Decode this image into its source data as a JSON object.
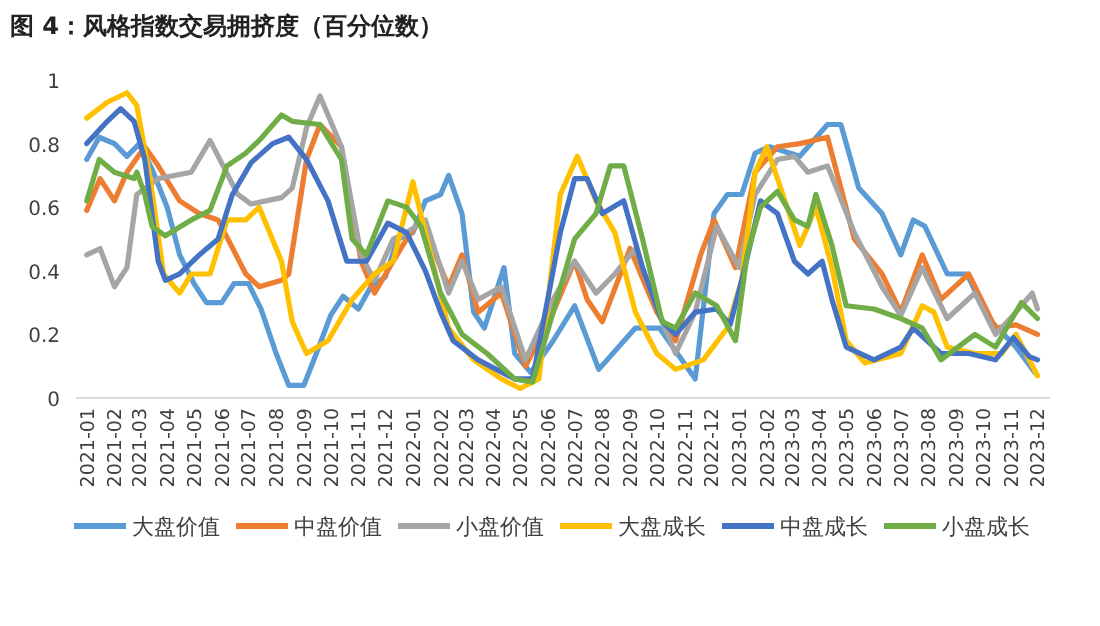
{
  "chart_data": {
    "type": "line",
    "title": "图 4：风格指数交易拥挤度（百分位数）",
    "xlim": [
      "2020-12-20",
      "2023-12-15"
    ],
    "xticks": [
      "2021-01",
      "2021-02",
      "2021-03",
      "2021-04",
      "2021-05",
      "2021-06",
      "2021-07",
      "2021-08",
      "2021-09",
      "2021-10",
      "2021-11",
      "2021-12",
      "2022-01",
      "2022-02",
      "2022-03",
      "2022-04",
      "2022-05",
      "2022-06",
      "2022-07",
      "2022-08",
      "2022-09",
      "2022-10",
      "2022-11",
      "2022-12",
      "2023-01",
      "2023-02",
      "2023-03",
      "2023-04",
      "2023-05",
      "2023-06",
      "2023-07",
      "2023-08",
      "2023-09",
      "2023-10",
      "2023-11",
      "2023-12"
    ],
    "ylim": [
      0,
      1
    ],
    "yticks": [
      0,
      0.2,
      0.4,
      0.6,
      0.8,
      1
    ],
    "grid": false,
    "legend": "bottom",
    "marker": "none",
    "line_style": "solid",
    "series": [
      {
        "name": "大盘价值",
        "color": "#5b9bd5",
        "x": [
          "2021-01-01",
          "2021-01-15",
          "2021-02-01",
          "2021-02-15",
          "2021-03-01",
          "2021-03-15",
          "2021-04-01",
          "2021-04-15",
          "2021-05-01",
          "2021-05-15",
          "2021-06-01",
          "2021-06-15",
          "2021-07-01",
          "2021-07-15",
          "2021-08-01",
          "2021-08-15",
          "2021-09-01",
          "2021-09-15",
          "2021-10-01",
          "2021-10-15",
          "2021-11-01",
          "2021-11-15",
          "2021-12-01",
          "2021-12-15",
          "2022-01-01",
          "2022-01-15",
          "2022-02-01",
          "2022-02-10",
          "2022-02-25",
          "2022-03-10",
          "2022-03-22",
          "2022-04-13",
          "2022-04-25",
          "2022-05-13",
          "2022-06-07",
          "2022-07-01",
          "2022-07-28",
          "2022-09-07",
          "2022-10-04",
          "2022-11-13",
          "2022-12-04",
          "2022-12-19",
          "2023-01-04",
          "2023-01-19",
          "2023-02-04",
          "2023-03-10",
          "2023-04-10",
          "2023-04-25",
          "2023-05-15",
          "2023-06-10",
          "2023-07-01",
          "2023-07-15",
          "2023-07-28",
          "2023-08-22",
          "2023-09-13",
          "2023-10-07",
          "2023-11-07",
          "2023-11-28"
        ],
        "values": [
          0.75,
          0.82,
          0.8,
          0.76,
          0.8,
          0.72,
          0.6,
          0.45,
          0.36,
          0.3,
          0.3,
          0.36,
          0.36,
          0.28,
          0.14,
          0.04,
          0.04,
          0.14,
          0.26,
          0.32,
          0.28,
          0.35,
          0.38,
          0.5,
          0.52,
          0.62,
          0.64,
          0.7,
          0.58,
          0.27,
          0.22,
          0.41,
          0.14,
          0.08,
          0.18,
          0.29,
          0.09,
          0.22,
          0.22,
          0.06,
          0.58,
          0.64,
          0.64,
          0.77,
          0.79,
          0.76,
          0.86,
          0.86,
          0.66,
          0.58,
          0.45,
          0.56,
          0.54,
          0.39,
          0.39,
          0.25,
          0.16,
          0.08
        ]
      },
      {
        "name": "中盘价值",
        "color": "#ed7d31",
        "x": [
          "2021-01-01",
          "2021-01-16",
          "2021-02-01",
          "2021-02-15",
          "2021-03-07",
          "2021-03-22",
          "2021-04-15",
          "2021-05-07",
          "2021-05-28",
          "2021-06-28",
          "2021-07-13",
          "2021-08-07",
          "2021-08-15",
          "2021-09-04",
          "2021-09-19",
          "2021-10-13",
          "2021-11-04",
          "2021-11-19",
          "2021-12-10",
          "2021-12-25",
          "2022-01-10",
          "2022-02-10",
          "2022-02-25",
          "2022-03-15",
          "2022-04-10",
          "2022-05-07",
          "2022-06-07",
          "2022-07-01",
          "2022-07-15",
          "2022-08-01",
          "2022-09-01",
          "2022-10-01",
          "2022-10-22",
          "2022-11-19",
          "2022-12-04",
          "2022-12-28",
          "2023-01-19",
          "2023-02-13",
          "2023-03-10",
          "2023-04-10",
          "2023-05-10",
          "2023-06-10",
          "2023-07-01",
          "2023-07-25",
          "2023-08-15",
          "2023-09-15",
          "2023-10-15",
          "2023-11-07",
          "2023-12-01"
        ],
        "values": [
          0.59,
          0.69,
          0.62,
          0.71,
          0.79,
          0.73,
          0.62,
          0.58,
          0.56,
          0.39,
          0.35,
          0.37,
          0.39,
          0.75,
          0.86,
          0.79,
          0.43,
          0.33,
          0.43,
          0.5,
          0.56,
          0.35,
          0.45,
          0.27,
          0.33,
          0.1,
          0.27,
          0.43,
          0.31,
          0.24,
          0.47,
          0.27,
          0.18,
          0.45,
          0.56,
          0.41,
          0.71,
          0.79,
          0.8,
          0.82,
          0.5,
          0.39,
          0.27,
          0.45,
          0.31,
          0.39,
          0.22,
          0.23,
          0.2
        ]
      },
      {
        "name": "小盘价值",
        "color": "#a5a5a5",
        "x": [
          "2021-01-01",
          "2021-01-16",
          "2021-02-01",
          "2021-02-15",
          "2021-02-26",
          "2021-03-22",
          "2021-04-28",
          "2021-05-19",
          "2021-06-19",
          "2021-07-04",
          "2021-08-07",
          "2021-08-19",
          "2021-09-04",
          "2021-09-19",
          "2021-10-13",
          "2021-11-04",
          "2021-11-19",
          "2021-12-10",
          "2021-12-25",
          "2022-01-15",
          "2022-02-10",
          "2022-02-25",
          "2022-03-15",
          "2022-04-10",
          "2022-05-07",
          "2022-06-07",
          "2022-07-01",
          "2022-07-25",
          "2022-08-15",
          "2022-09-07",
          "2022-10-07",
          "2022-10-22",
          "2022-11-13",
          "2022-12-07",
          "2023-01-01",
          "2023-01-19",
          "2023-02-13",
          "2023-03-04",
          "2023-03-19",
          "2023-04-10",
          "2023-05-10",
          "2023-06-10",
          "2023-07-01",
          "2023-07-25",
          "2023-08-22",
          "2023-09-22",
          "2023-10-15",
          "2023-11-07",
          "2023-11-25",
          "2023-12-01"
        ],
        "values": [
          0.45,
          0.47,
          0.35,
          0.41,
          0.64,
          0.69,
          0.71,
          0.81,
          0.64,
          0.61,
          0.63,
          0.66,
          0.85,
          0.95,
          0.79,
          0.45,
          0.37,
          0.5,
          0.52,
          0.56,
          0.33,
          0.43,
          0.31,
          0.35,
          0.12,
          0.31,
          0.43,
          0.33,
          0.39,
          0.47,
          0.24,
          0.14,
          0.27,
          0.54,
          0.41,
          0.64,
          0.75,
          0.76,
          0.71,
          0.73,
          0.52,
          0.35,
          0.26,
          0.41,
          0.25,
          0.33,
          0.2,
          0.27,
          0.33,
          0.28
        ]
      },
      {
        "name": "大盘成长",
        "color": "#ffc000",
        "x": [
          "2021-01-01",
          "2021-01-24",
          "2021-02-15",
          "2021-02-26",
          "2021-03-13",
          "2021-03-28",
          "2021-04-15",
          "2021-04-28",
          "2021-05-19",
          "2021-06-07",
          "2021-06-28",
          "2021-07-13",
          "2021-08-07",
          "2021-08-19",
          "2021-09-04",
          "2021-09-28",
          "2021-10-25",
          "2021-11-19",
          "2021-12-10",
          "2022-01-01",
          "2022-01-15",
          "2022-02-10",
          "2022-03-10",
          "2022-04-10",
          "2022-05-01",
          "2022-05-22",
          "2022-06-15",
          "2022-07-04",
          "2022-07-25",
          "2022-08-15",
          "2022-09-07",
          "2022-10-01",
          "2022-10-22",
          "2022-11-22",
          "2022-12-19",
          "2023-01-04",
          "2023-01-19",
          "2023-02-01",
          "2023-02-19",
          "2023-03-10",
          "2023-03-28",
          "2023-04-15",
          "2023-05-01",
          "2023-05-22",
          "2023-07-01",
          "2023-07-25",
          "2023-08-07",
          "2023-08-22",
          "2023-09-22",
          "2023-10-22",
          "2023-11-07",
          "2023-12-01"
        ],
        "values": [
          0.88,
          0.93,
          0.96,
          0.92,
          0.69,
          0.39,
          0.33,
          0.39,
          0.39,
          0.56,
          0.56,
          0.6,
          0.43,
          0.24,
          0.14,
          0.18,
          0.31,
          0.39,
          0.43,
          0.68,
          0.52,
          0.22,
          0.12,
          0.06,
          0.03,
          0.06,
          0.64,
          0.76,
          0.62,
          0.52,
          0.27,
          0.14,
          0.09,
          0.12,
          0.22,
          0.37,
          0.71,
          0.79,
          0.64,
          0.48,
          0.6,
          0.41,
          0.18,
          0.11,
          0.14,
          0.29,
          0.27,
          0.16,
          0.14,
          0.14,
          0.2,
          0.07
        ]
      },
      {
        "name": "中盘成长",
        "color": "#4472c4",
        "x": [
          "2021-01-01",
          "2021-01-24",
          "2021-02-08",
          "2021-02-23",
          "2021-03-07",
          "2021-03-22",
          "2021-03-30",
          "2021-04-15",
          "2021-05-07",
          "2021-05-28",
          "2021-06-13",
          "2021-07-04",
          "2021-07-28",
          "2021-08-15",
          "2021-09-04",
          "2021-09-28",
          "2021-10-19",
          "2021-11-10",
          "2021-12-04",
          "2021-12-25",
          "2022-01-15",
          "2022-02-01",
          "2022-02-15",
          "2022-03-15",
          "2022-04-25",
          "2022-05-15",
          "2022-06-15",
          "2022-07-01",
          "2022-07-15",
          "2022-08-01",
          "2022-08-25",
          "2022-09-15",
          "2022-10-07",
          "2022-10-22",
          "2022-11-13",
          "2022-12-07",
          "2022-12-22",
          "2023-01-04",
          "2023-01-25",
          "2023-02-13",
          "2023-03-04",
          "2023-03-19",
          "2023-04-04",
          "2023-04-15",
          "2023-05-01",
          "2023-06-01",
          "2023-07-01",
          "2023-07-15",
          "2023-08-15",
          "2023-09-15",
          "2023-10-15",
          "2023-11-04",
          "2023-11-22",
          "2023-12-01"
        ],
        "values": [
          0.8,
          0.87,
          0.91,
          0.87,
          0.75,
          0.43,
          0.37,
          0.39,
          0.45,
          0.5,
          0.64,
          0.74,
          0.8,
          0.82,
          0.75,
          0.62,
          0.43,
          0.43,
          0.55,
          0.52,
          0.4,
          0.27,
          0.18,
          0.12,
          0.06,
          0.06,
          0.52,
          0.69,
          0.69,
          0.58,
          0.62,
          0.41,
          0.24,
          0.2,
          0.27,
          0.28,
          0.23,
          0.37,
          0.62,
          0.58,
          0.43,
          0.39,
          0.43,
          0.31,
          0.16,
          0.12,
          0.16,
          0.22,
          0.14,
          0.14,
          0.12,
          0.19,
          0.13,
          0.12
        ]
      },
      {
        "name": "小盘成长",
        "color": "#70ad47",
        "x": [
          "2021-01-01",
          "2021-01-15",
          "2021-02-01",
          "2021-02-23",
          "2021-02-26",
          "2021-03-07",
          "2021-03-15",
          "2021-03-30",
          "2021-04-28",
          "2021-05-19",
          "2021-06-07",
          "2021-06-28",
          "2021-07-13",
          "2021-08-07",
          "2021-08-19",
          "2021-09-19",
          "2021-10-13",
          "2021-10-25",
          "2021-11-10",
          "2021-12-04",
          "2021-12-25",
          "2022-01-10",
          "2022-02-01",
          "2022-02-25",
          "2022-03-25",
          "2022-04-25",
          "2022-05-15",
          "2022-06-07",
          "2022-07-01",
          "2022-07-25",
          "2022-08-10",
          "2022-08-25",
          "2022-09-15",
          "2022-10-07",
          "2022-10-22",
          "2022-11-13",
          "2022-12-07",
          "2022-12-28",
          "2023-01-10",
          "2023-01-25",
          "2023-02-13",
          "2023-03-04",
          "2023-03-19",
          "2023-03-28",
          "2023-04-15",
          "2023-05-01",
          "2023-06-01",
          "2023-07-01",
          "2023-07-25",
          "2023-08-15",
          "2023-09-22",
          "2023-10-15",
          "2023-11-13",
          "2023-12-01"
        ],
        "values": [
          0.62,
          0.75,
          0.71,
          0.69,
          0.71,
          0.64,
          0.54,
          0.51,
          0.56,
          0.59,
          0.73,
          0.77,
          0.81,
          0.89,
          0.87,
          0.86,
          0.75,
          0.5,
          0.45,
          0.62,
          0.6,
          0.54,
          0.33,
          0.2,
          0.14,
          0.06,
          0.05,
          0.27,
          0.5,
          0.58,
          0.73,
          0.73,
          0.5,
          0.24,
          0.22,
          0.33,
          0.29,
          0.18,
          0.45,
          0.6,
          0.65,
          0.56,
          0.54,
          0.64,
          0.48,
          0.29,
          0.28,
          0.25,
          0.22,
          0.12,
          0.2,
          0.16,
          0.3,
          0.25
        ]
      }
    ]
  }
}
